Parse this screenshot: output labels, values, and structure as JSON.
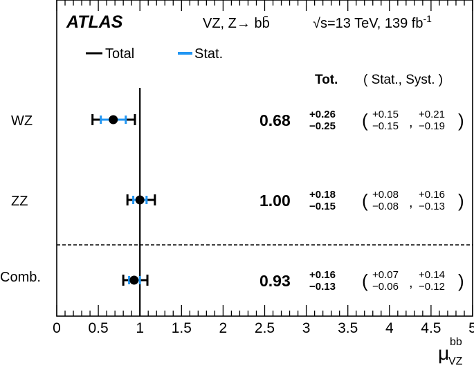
{
  "chart_data": {
    "type": "scatter",
    "experiment": "ATLAS",
    "process": "VZ, Z→ bb̄",
    "energy_lumi": {
      "sqrt": "√s",
      "energy": "=13 TeV, 139 fb",
      "lumi_exp": "-1"
    },
    "legend": {
      "placement": "top-left",
      "total": "Total",
      "stat": "Stat."
    },
    "header": {
      "total": "Tot.",
      "stat_syst": "( Stat., Syst. )"
    },
    "xlabel": "μ",
    "xlabel_sup": "bb",
    "xlabel_sub": "VZ",
    "xlim": [
      0,
      5
    ],
    "x_ticks": [
      "0",
      "0.5",
      "1",
      "1.5",
      "2",
      "2.5",
      "3",
      "3.5",
      "4",
      "4.5",
      "5"
    ],
    "reference_line": 1,
    "colors": {
      "total": "#000000",
      "stat": "#2196f3"
    },
    "measurements": [
      {
        "label": "WZ",
        "value": 0.68,
        "value_text": "0.68",
        "tot_up": 0.26,
        "tot_dn": 0.25,
        "tot_up_text": "+0.26",
        "tot_dn_text": "−0.25",
        "stat_up": 0.15,
        "stat_dn": 0.15,
        "stat_up_text": "+0.15",
        "stat_dn_text": "−0.15",
        "syst_up_text": "+0.21",
        "syst_dn_text": "−0.19"
      },
      {
        "label": "ZZ",
        "value": 1.0,
        "value_text": "1.00",
        "tot_up": 0.18,
        "tot_dn": 0.15,
        "tot_up_text": "+0.18",
        "tot_dn_text": "−0.15",
        "stat_up": 0.08,
        "stat_dn": 0.08,
        "stat_up_text": "+0.08",
        "stat_dn_text": "−0.08",
        "syst_up_text": "+0.16",
        "syst_dn_text": "−0.13"
      },
      {
        "label": "Comb.",
        "value": 0.93,
        "value_text": "0.93",
        "tot_up": 0.16,
        "tot_dn": 0.13,
        "tot_up_text": "+0.16",
        "tot_dn_text": "−0.13",
        "stat_up": 0.07,
        "stat_dn": 0.06,
        "stat_up_text": "+0.07",
        "stat_dn_text": "−0.06",
        "syst_up_text": "+0.14",
        "syst_dn_text": "−0.12"
      }
    ]
  }
}
